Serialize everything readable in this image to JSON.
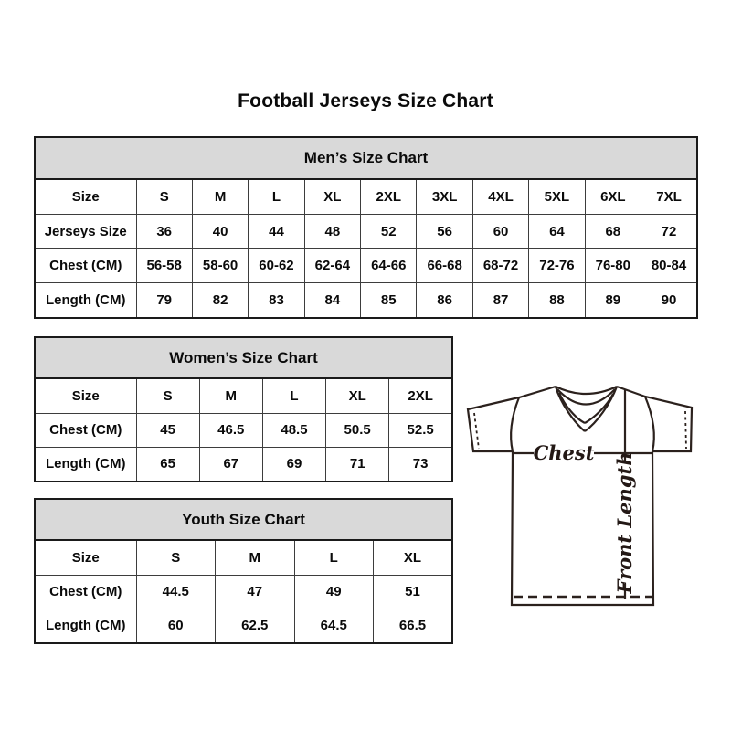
{
  "page": {
    "title": "Football Jerseys Size Chart"
  },
  "tables": {
    "mens": {
      "title": "Men’s Size Chart",
      "rows": [
        [
          "Size",
          "S",
          "M",
          "L",
          "XL",
          "2XL",
          "3XL",
          "4XL",
          "5XL",
          "6XL",
          "7XL"
        ],
        [
          "Jerseys Size",
          "36",
          "40",
          "44",
          "48",
          "52",
          "56",
          "60",
          "64",
          "68",
          "72"
        ],
        [
          "Chest (CM)",
          "56-58",
          "58-60",
          "60-62",
          "62-64",
          "64-66",
          "66-68",
          "68-72",
          "72-76",
          "76-80",
          "80-84"
        ],
        [
          "Length (CM)",
          "79",
          "82",
          "83",
          "84",
          "85",
          "86",
          "87",
          "88",
          "89",
          "90"
        ]
      ]
    },
    "womens": {
      "title": "Women’s Size Chart",
      "rows": [
        [
          "Size",
          "S",
          "M",
          "L",
          "XL",
          "2XL"
        ],
        [
          "Chest (CM)",
          "45",
          "46.5",
          "48.5",
          "50.5",
          "52.5"
        ],
        [
          "Length (CM)",
          "65",
          "67",
          "69",
          "71",
          "73"
        ]
      ]
    },
    "youth": {
      "title": "Youth Size Chart",
      "rows": [
        [
          "Size",
          "S",
          "M",
          "L",
          "XL"
        ],
        [
          "Chest (CM)",
          "44.5",
          "47",
          "49",
          "51"
        ],
        [
          "Length (CM)",
          "60",
          "62.5",
          "64.5",
          "66.5"
        ]
      ]
    }
  },
  "diagram": {
    "chest_label": "Chest",
    "front_length_label": "Front Length"
  },
  "colors": {
    "header_bg": "#d9d9d9",
    "table_border": "#1a1a1a",
    "jersey_line": "#2b211d"
  }
}
